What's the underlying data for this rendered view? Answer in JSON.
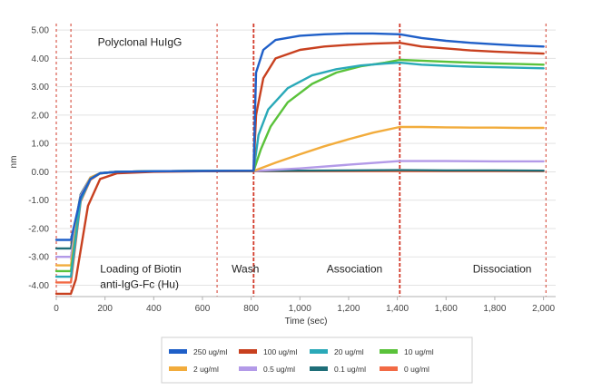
{
  "chart_data": {
    "type": "line",
    "title": "",
    "xlabel": "Time (sec)",
    "ylabel": "nm",
    "xlim": [
      0,
      2050
    ],
    "ylim": [
      -4.4,
      5.1
    ],
    "grid": true,
    "legend_position": "bottom",
    "x_ticks": [
      0,
      200,
      400,
      600,
      800,
      1000,
      1200,
      1400,
      1600,
      1800,
      2000
    ],
    "x_tick_labels": [
      "0",
      "200",
      "400",
      "600",
      "800",
      "1,000",
      "1,200",
      "1,400",
      "1,600",
      "1,800",
      "2,000"
    ],
    "y_ticks": [
      5,
      4,
      3,
      2,
      1,
      0,
      -1,
      -2,
      -3,
      -4
    ],
    "y_tick_labels": [
      "5.00",
      "4.00",
      "3.00",
      "2.00",
      "1.00",
      "0.00",
      "-1.00",
      "-2.00",
      "-3.00",
      "-4.00"
    ],
    "step_boundaries": [
      0,
      60,
      660,
      810,
      1410,
      2010
    ],
    "annotations": [
      {
        "id": "polyclonal",
        "lines": [
          "Polyclonal HuIgG"
        ],
        "x": 170,
        "y": 4.45
      },
      {
        "id": "loading",
        "lines": [
          "Loading of Biotin",
          "anti-IgG-Fc (Hu)"
        ],
        "x": 180,
        "y": -3.55
      },
      {
        "id": "wash",
        "lines": [
          "Wash"
        ],
        "x": 720,
        "y": -3.55
      },
      {
        "id": "association",
        "lines": [
          "Association"
        ],
        "x": 1110,
        "y": -3.55
      },
      {
        "id": "dissociation",
        "lines": [
          "Dissociation"
        ],
        "x": 1710,
        "y": -3.55
      }
    ],
    "series": [
      {
        "name": "250 ug/ml",
        "color": "#1f5fc8",
        "x": [
          0,
          60,
          100,
          140,
          180,
          250,
          400,
          600,
          810,
          820,
          850,
          900,
          1000,
          1100,
          1200,
          1300,
          1410,
          1500,
          1600,
          1700,
          1800,
          1900,
          2000
        ],
        "y": [
          -2.4,
          -2.4,
          -0.9,
          -0.25,
          -0.05,
          0.0,
          0.02,
          0.03,
          0.04,
          3.5,
          4.3,
          4.65,
          4.8,
          4.85,
          4.88,
          4.88,
          4.85,
          4.72,
          4.62,
          4.55,
          4.5,
          4.45,
          4.42
        ]
      },
      {
        "name": "100 ug/ml",
        "color": "#c8401f",
        "x": [
          0,
          60,
          80,
          130,
          180,
          250,
          400,
          600,
          810,
          820,
          850,
          900,
          1000,
          1100,
          1200,
          1300,
          1410,
          1500,
          1600,
          1700,
          1800,
          1900,
          2000
        ],
        "y": [
          -4.3,
          -4.3,
          -3.8,
          -1.2,
          -0.25,
          -0.05,
          0.0,
          0.02,
          0.03,
          2.0,
          3.3,
          4.0,
          4.3,
          4.42,
          4.48,
          4.52,
          4.55,
          4.42,
          4.35,
          4.28,
          4.24,
          4.2,
          4.17
        ]
      },
      {
        "name": "20 ug/ml",
        "color": "#2aa9b8",
        "x": [
          0,
          60,
          100,
          140,
          180,
          250,
          400,
          600,
          810,
          830,
          870,
          950,
          1050,
          1150,
          1250,
          1350,
          1410,
          1500,
          1600,
          1700,
          1800,
          1900,
          2000
        ],
        "y": [
          -3.7,
          -3.7,
          -1.0,
          -0.25,
          -0.05,
          0.0,
          0.02,
          0.03,
          0.03,
          1.3,
          2.2,
          2.95,
          3.4,
          3.62,
          3.75,
          3.82,
          3.85,
          3.78,
          3.74,
          3.71,
          3.69,
          3.67,
          3.65
        ]
      },
      {
        "name": "10 ug/ml",
        "color": "#5ac23a",
        "x": [
          0,
          60,
          100,
          140,
          180,
          250,
          400,
          600,
          810,
          840,
          880,
          950,
          1050,
          1150,
          1250,
          1350,
          1410,
          1500,
          1600,
          1700,
          1800,
          1900,
          2000
        ],
        "y": [
          -3.5,
          -3.5,
          -0.95,
          -0.25,
          -0.05,
          0.0,
          0.02,
          0.03,
          0.03,
          0.8,
          1.6,
          2.45,
          3.1,
          3.5,
          3.72,
          3.85,
          3.95,
          3.92,
          3.88,
          3.85,
          3.82,
          3.8,
          3.78
        ]
      },
      {
        "name": "2 ug/ml",
        "color": "#f2ac3c",
        "x": [
          0,
          60,
          100,
          140,
          180,
          250,
          400,
          600,
          810,
          900,
          1000,
          1100,
          1200,
          1300,
          1410,
          1500,
          1600,
          1700,
          1800,
          1900,
          2000
        ],
        "y": [
          -3.3,
          -3.3,
          -0.9,
          -0.2,
          -0.05,
          0.0,
          0.02,
          0.03,
          0.03,
          0.32,
          0.62,
          0.9,
          1.15,
          1.38,
          1.58,
          1.58,
          1.57,
          1.56,
          1.56,
          1.55,
          1.55
        ]
      },
      {
        "name": "0.5 ug/ml",
        "color": "#b39ae8",
        "x": [
          0,
          60,
          100,
          140,
          180,
          250,
          400,
          600,
          810,
          1000,
          1200,
          1410,
          1600,
          1800,
          2000
        ],
        "y": [
          -3.0,
          -3.0,
          -0.85,
          -0.2,
          -0.05,
          0.0,
          0.02,
          0.03,
          0.03,
          0.12,
          0.25,
          0.38,
          0.38,
          0.37,
          0.37
        ]
      },
      {
        "name": "0.1 ug/ml",
        "color": "#1e6e78",
        "x": [
          0,
          60,
          100,
          140,
          180,
          250,
          400,
          600,
          810,
          1000,
          1200,
          1410,
          1600,
          1800,
          2000
        ],
        "y": [
          -2.7,
          -2.7,
          -0.8,
          -0.2,
          -0.05,
          0.0,
          0.02,
          0.03,
          0.03,
          0.04,
          0.05,
          0.06,
          0.05,
          0.05,
          0.04
        ]
      },
      {
        "name": "0 ug/ml",
        "color": "#f26a45",
        "x": [
          0,
          60,
          100,
          140,
          180,
          250,
          400,
          600,
          810,
          1000,
          1200,
          1410,
          1600,
          1800,
          2000
        ],
        "y": [
          -3.9,
          -3.9,
          -1.05,
          -0.28,
          -0.06,
          0.0,
          0.02,
          0.02,
          0.02,
          0.02,
          0.02,
          0.02,
          0.02,
          0.02,
          0.02
        ]
      }
    ]
  }
}
